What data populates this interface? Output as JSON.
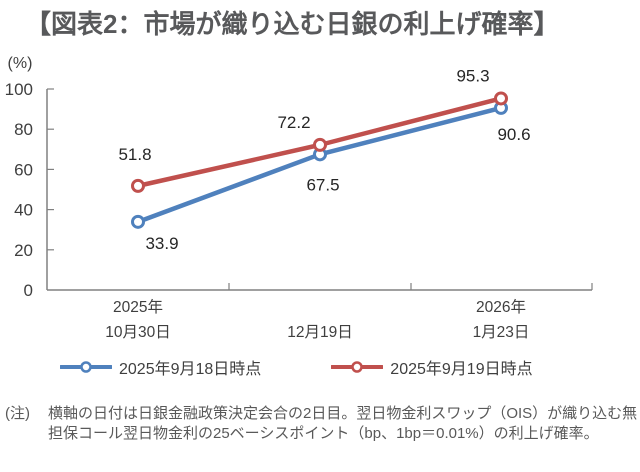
{
  "title": "【図表2：市場が織り込む日銀の利上げ確率】",
  "colors": {
    "title_text": "#58595b",
    "axis_line": "#808080",
    "tick_text": "#3f3f3f",
    "data_label_text": "#262626",
    "note_text": "#595959",
    "series_blue": "#4F81BD",
    "series_red": "#C0504D"
  },
  "chart_data": {
    "type": "line",
    "title": "市場が織り込む日銀の利上げ確率",
    "unit_label": "(%)",
    "xlabel": "",
    "ylabel": "(%)",
    "ylim": [
      0,
      100
    ],
    "yticks": [
      0,
      20,
      40,
      60,
      80,
      100
    ],
    "grid": false,
    "legend_position": "bottom",
    "categories": [
      {
        "line1": "2025年",
        "line2": "10月30日"
      },
      {
        "line1": "",
        "line2": "12月19日"
      },
      {
        "line1": "2026年",
        "line2": "1月23日"
      }
    ],
    "series": [
      {
        "name": "2025年9月18日時点",
        "color": "#4F81BD",
        "values": [
          33.9,
          67.5,
          90.6
        ],
        "label_offsets": [
          [
            24,
            21
          ],
          [
            3,
            30
          ],
          [
            13,
            26
          ]
        ]
      },
      {
        "name": "2025年9月19日時点",
        "color": "#C0504D",
        "values": [
          51.8,
          72.2,
          95.3
        ],
        "label_offsets": [
          [
            -3,
            -32
          ],
          [
            -26,
            -23
          ],
          [
            -28,
            -23
          ]
        ]
      }
    ]
  },
  "note": {
    "label": "(注)",
    "lines": [
      "横軸の日付は日銀金融政策決定会合の2日目。翌日物金利スワップ（OIS）が織り込む無",
      "担保コール翌日物金利の25ベーシスポイント（bp、1bp＝0.01%）の利上げ確率。"
    ]
  }
}
